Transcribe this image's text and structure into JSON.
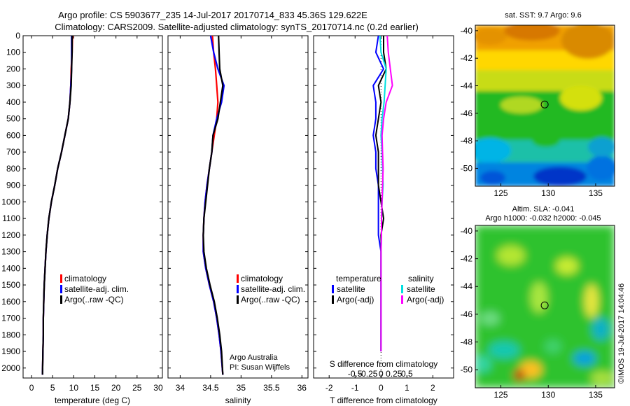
{
  "header": {
    "line1": "Argo profile: CS 5903677_235 14-Jul-2017 20170714_833 45.36S 129.622E",
    "line2": "Climatology: CARS2009. Satellite-adjusted climatology: synTS_20170714.nc (0.2d earlier)"
  },
  "colors": {
    "climatology": "#ff0000",
    "satellite": "#0000ff",
    "argo": "#000000",
    "sal_satellite": "#00e0e0",
    "sal_argo": "#ff00ff"
  },
  "chart_data": [
    {
      "type": "line",
      "panel": "temperature",
      "xlabel": "temperature (deg C)",
      "ylabel": "",
      "xlim": [
        -2,
        31
      ],
      "ylim": [
        2060,
        0
      ],
      "xticks": [
        "0",
        "5",
        "10",
        "15",
        "20",
        "25",
        "30"
      ],
      "yticks": [
        "0",
        "100",
        "200",
        "300",
        "400",
        "500",
        "600",
        "700",
        "800",
        "900",
        "1000",
        "1100",
        "1200",
        "1300",
        "1400",
        "1500",
        "1600",
        "1700",
        "1800",
        "1900",
        "2000"
      ],
      "legend": [
        "climatology",
        "satellite-adj. clim.",
        "Argo(..raw -QC)"
      ],
      "legend_position": "lower-right",
      "series": [
        {
          "name": "climatology",
          "color": "#ff0000",
          "x": [
            9.7,
            9.6,
            9.4,
            9.3,
            9.1,
            8.7,
            7.9,
            7.1,
            6.2,
            5.5,
            4.7,
            4.1,
            3.7,
            3.4,
            3.2,
            3.0,
            2.9,
            2.8,
            2.8,
            2.7,
            2.6
          ],
          "y": [
            0,
            100,
            200,
            300,
            400,
            500,
            600,
            700,
            800,
            900,
            1000,
            1100,
            1200,
            1300,
            1400,
            1500,
            1600,
            1700,
            1800,
            1900,
            2040
          ]
        },
        {
          "name": "satellite-adj. clim.",
          "color": "#0000ff",
          "x": [
            9.5,
            9.5,
            9.5,
            9.3,
            9.1,
            8.7,
            7.9,
            7.1,
            6.2,
            5.5,
            4.7,
            4.1,
            3.7,
            3.4,
            3.2,
            3.0,
            2.9,
            2.8,
            2.8,
            2.7,
            2.6
          ],
          "y": [
            0,
            100,
            200,
            300,
            400,
            500,
            600,
            700,
            800,
            900,
            1000,
            1100,
            1200,
            1300,
            1400,
            1500,
            1600,
            1700,
            1800,
            1900,
            2040
          ]
        },
        {
          "name": "Argo(..raw -QC)",
          "color": "#000000",
          "x": [
            9.6,
            9.6,
            9.5,
            9.4,
            9.1,
            8.7,
            7.9,
            7.1,
            6.2,
            5.5,
            4.7,
            4.1,
            3.7,
            3.4,
            3.2,
            3.0,
            2.9,
            2.8,
            2.8,
            2.7,
            2.6
          ],
          "y": [
            0,
            100,
            200,
            300,
            400,
            500,
            600,
            700,
            800,
            900,
            1000,
            1100,
            1200,
            1300,
            1400,
            1500,
            1600,
            1700,
            1800,
            1900,
            2040
          ]
        }
      ]
    },
    {
      "type": "line",
      "panel": "salinity",
      "xlabel": "salinity",
      "ylabel": "",
      "xlim": [
        33.8,
        36.1
      ],
      "ylim": [
        2060,
        0
      ],
      "xticks": [
        "34",
        "34.5",
        "35",
        "35.5",
        "36"
      ],
      "legend": [
        "climatology",
        "satellite-adj. clim.",
        "Argo(..raw -QC)"
      ],
      "legend_position": "lower-right",
      "annotations": [
        "Argo Australia",
        "PI: Susan Wijffels"
      ],
      "series": [
        {
          "name": "climatology",
          "color": "#ff0000",
          "x": [
            34.53,
            34.55,
            34.58,
            34.6,
            34.62,
            34.6,
            34.56,
            34.52,
            34.48,
            34.44,
            34.41,
            34.39,
            34.38,
            34.38,
            34.42,
            34.48,
            34.55,
            34.6,
            34.64,
            34.67,
            34.7
          ],
          "y": [
            0,
            100,
            200,
            300,
            400,
            500,
            600,
            700,
            800,
            900,
            1000,
            1100,
            1200,
            1300,
            1400,
            1500,
            1600,
            1700,
            1800,
            1900,
            2040
          ]
        },
        {
          "name": "satellite-adj. clim.",
          "color": "#0000ff",
          "x": [
            34.5,
            34.55,
            34.62,
            34.72,
            34.68,
            34.6,
            34.54,
            34.52,
            34.48,
            34.44,
            34.41,
            34.39,
            34.38,
            34.38,
            34.42,
            34.48,
            34.55,
            34.6,
            34.64,
            34.67,
            34.7
          ],
          "y": [
            0,
            100,
            200,
            300,
            400,
            500,
            600,
            700,
            800,
            900,
            1000,
            1100,
            1200,
            1300,
            1400,
            1500,
            1600,
            1700,
            1800,
            1900,
            2040
          ]
        },
        {
          "name": "Argo(..raw -QC)",
          "color": "#000000",
          "x": [
            34.63,
            34.64,
            34.65,
            34.7,
            34.66,
            34.62,
            34.54,
            34.52,
            34.48,
            34.45,
            34.42,
            34.39,
            34.38,
            34.39,
            34.43,
            34.49,
            34.56,
            34.61,
            34.65,
            34.68,
            34.7
          ],
          "y": [
            0,
            100,
            200,
            300,
            400,
            500,
            600,
            700,
            800,
            900,
            1000,
            1100,
            1200,
            1300,
            1400,
            1500,
            1600,
            1700,
            1800,
            1900,
            2040
          ]
        }
      ]
    },
    {
      "type": "line",
      "panel": "difference",
      "xlabel": "T difference from climatology",
      "xlabel2": "S difference from climatology",
      "ylabel": "",
      "xlim": [
        -2.6,
        2.8
      ],
      "ylim": [
        2060,
        0
      ],
      "xticks": [
        "-2",
        "-1",
        "0",
        "1",
        "2"
      ],
      "xticks2": [
        "-0.5",
        "-0.25",
        "0",
        "0.25",
        "0.5"
      ],
      "legend_headers": [
        "temperature",
        "salinity"
      ],
      "legend": [
        "satellite",
        "Argo(-adj)",
        "satellite",
        "Argo(-adj)"
      ],
      "legend_position": "lower-center",
      "series": [
        {
          "name": "satellite",
          "group": "temperature",
          "color": "#0000ff",
          "x": [
            -0.1,
            -0.2,
            0.1,
            -0.3,
            -0.2,
            -0.2,
            -0.3,
            -0.2,
            -0.2,
            -0.1,
            -0.1,
            -0.1,
            -0.1,
            0,
            0,
            0,
            0,
            0,
            0,
            0
          ],
          "y": [
            0,
            100,
            200,
            300,
            400,
            500,
            600,
            700,
            800,
            900,
            1000,
            1100,
            1200,
            1300,
            1400,
            1500,
            1600,
            1700,
            1800,
            1900
          ]
        },
        {
          "name": "Argo(-adj)",
          "group": "temperature",
          "color": "#000000",
          "x": [
            0.1,
            0.1,
            0.2,
            -0.1,
            0,
            -0.1,
            -0.2,
            -0.1,
            -0.1,
            -0.1,
            0,
            0.1,
            0,
            0,
            0,
            0,
            0,
            0,
            0,
            0
          ],
          "y": [
            0,
            100,
            200,
            300,
            400,
            500,
            600,
            700,
            800,
            900,
            1000,
            1100,
            1200,
            1300,
            1400,
            1500,
            1600,
            1700,
            1800,
            1900
          ]
        },
        {
          "name": "satellite",
          "group": "salinity",
          "color": "#00e0e0",
          "x": [
            -0.02,
            0,
            0.1,
            0.08,
            0.06,
            0.02,
            0,
            0.02,
            0.03,
            0.04,
            0.02,
            0.01,
            0.01,
            0,
            0,
            0,
            0,
            0,
            0,
            0
          ],
          "y": [
            0,
            100,
            200,
            300,
            400,
            500,
            600,
            700,
            800,
            900,
            1000,
            1100,
            1200,
            1300,
            1400,
            1500,
            1600,
            1700,
            1800,
            1900
          ]
        },
        {
          "name": "Argo(-adj)",
          "group": "salinity",
          "color": "#ff00ff",
          "x": [
            0.12,
            0.14,
            0.18,
            0.22,
            0.1,
            0.05,
            0.02,
            0.03,
            0.04,
            0.03,
            0.02,
            0.01,
            0.01,
            0,
            0,
            0,
            0,
            0,
            0,
            0
          ],
          "y": [
            0,
            100,
            200,
            300,
            400,
            500,
            600,
            700,
            800,
            900,
            1000,
            1100,
            1200,
            1300,
            1400,
            1500,
            1600,
            1700,
            1800,
            1900
          ]
        }
      ]
    },
    {
      "type": "heatmap",
      "panel": "sst_map",
      "title": "sat. SST: 9.7  Argo: 9.6",
      "xticks": [
        "125",
        "130",
        "135"
      ],
      "yticks": [
        "-40",
        "-42",
        "-44",
        "-46",
        "-48",
        "-50"
      ],
      "xlim": [
        122.3,
        137.0
      ],
      "ylim": [
        -51.3,
        -39.6
      ],
      "marker": {
        "lon": 129.622,
        "lat": -45.36
      }
    },
    {
      "type": "heatmap",
      "panel": "sla_map",
      "title": "Altim. SLA: -0.041",
      "subtitle": "Argo h1000: -0.032  h2000: -0.045",
      "xticks": [
        "125",
        "130",
        "135"
      ],
      "yticks": [
        "-40",
        "-42",
        "-44",
        "-46",
        "-48",
        "-50"
      ],
      "xlim": [
        122.3,
        137.0
      ],
      "ylim": [
        -51.3,
        -39.6
      ],
      "marker": {
        "lon": 129.622,
        "lat": -45.36
      }
    }
  ],
  "footer": {
    "stamp": "©IMOS 19-Jul-2017 14:04:46"
  }
}
